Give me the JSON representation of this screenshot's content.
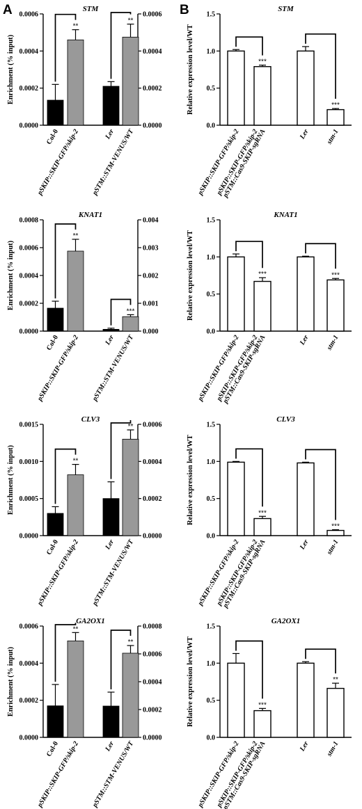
{
  "panels": {
    "left_letter": "A",
    "right_letter": "B"
  },
  "chart_data": [
    {
      "type": "bar",
      "panel": "A",
      "title": "STM",
      "ylabel": "Enrichment (% input)",
      "categories": [
        "Col-0",
        "pSKIP::SKIP-GFP/skip-2",
        "Ler",
        "pSTM::STM-VENUS/WT"
      ],
      "values": [
        0.000135,
        0.00046,
        0.00021,
        0.000475
      ],
      "errors": [
        8.5e-05,
        5.5e-05,
        2.5e-05,
        7e-05
      ],
      "significance": [
        "",
        "**",
        "",
        "**"
      ],
      "brackets": [
        [
          0,
          1
        ],
        [
          2,
          3
        ]
      ],
      "colors": [
        "#000000",
        "#999999",
        "#000000",
        "#999999"
      ],
      "ylim_left": [
        0,
        0.0006
      ],
      "yticks_left": [
        "0.0000",
        "0.0002",
        "0.0004",
        "0.0006"
      ],
      "ylim_right": [
        0,
        0.0006
      ],
      "yticks_right": [
        "0.0000",
        "0.0002",
        "0.0004",
        "0.0006"
      ]
    },
    {
      "type": "bar",
      "panel": "B",
      "title": "STM",
      "ylabel": "Relative expression level/WT",
      "categories": [
        "pSKIP::SKIP-GFP/skip-2",
        "pSKIP::SKIP-GFP/skip-2 pSTM::Cas9-SKIP-sgRNA",
        "Ler",
        "stm-1"
      ],
      "values": [
        1.0,
        0.79,
        1.0,
        0.21
      ],
      "errors": [
        0.02,
        0.02,
        0.06,
        0.015
      ],
      "significance": [
        "",
        "***",
        "",
        "***"
      ],
      "brackets": [
        [
          0,
          1
        ],
        [
          2,
          3
        ]
      ],
      "ylim": [
        0,
        1.5
      ],
      "yticks": [
        "0.0",
        "0.5",
        "1.0",
        "1.5"
      ]
    },
    {
      "type": "bar",
      "panel": "A",
      "title": "KNAT1",
      "ylabel": "Enrichment (% input)",
      "categories": [
        "Col-0",
        "pSKIP::SKIP-GFP/skip-2",
        "Ler",
        "pSTM::STM-VENUS/WT"
      ],
      "values": [
        0.000165,
        0.000575,
        6.5e-05,
        0.00052
      ],
      "errors": [
        5e-05,
        8.5e-05,
        4e-05,
        7e-05
      ],
      "significance": [
        "",
        "**",
        "",
        "***"
      ],
      "brackets": [
        [
          0,
          1
        ],
        [
          2,
          3
        ]
      ],
      "colors": [
        "#000000",
        "#999999",
        "#000000",
        "#999999"
      ],
      "ylim_left": [
        0,
        0.0008
      ],
      "yticks_left": [
        "0.0000",
        "0.0002",
        "0.0004",
        "0.0006",
        "0.0008"
      ],
      "ylim_right": [
        0,
        0.004
      ],
      "yticks_right": [
        "0.000",
        "0.001",
        "0.002",
        "0.003",
        "0.004"
      ]
    },
    {
      "type": "bar",
      "panel": "B",
      "title": "KNAT1",
      "ylabel": "Relative expression level/WT",
      "categories": [
        "pSKIP::SKIP-GFP/skip-2",
        "pSKIP::SKIP-GFP/skip-2 pSTM::Cas9-SKIP-sgRNA",
        "Ler",
        "stm-1"
      ],
      "values": [
        1.0,
        0.67,
        1.0,
        0.69
      ],
      "errors": [
        0.04,
        0.05,
        0.01,
        0.02
      ],
      "significance": [
        "",
        "***",
        "",
        "***"
      ],
      "brackets": [
        [
          0,
          1
        ],
        [
          2,
          3
        ]
      ],
      "ylim": [
        0,
        1.5
      ],
      "yticks": [
        "0.0",
        "0.5",
        "1.0",
        "1.5"
      ]
    },
    {
      "type": "bar",
      "panel": "A",
      "title": "CLV3",
      "ylabel": "Enrichment (% input)",
      "categories": [
        "Col-0",
        "pSKIP::SKIP-GFP/skip-2",
        "Ler",
        "pSTM::STM-VENUS/WT"
      ],
      "values": [
        0.0003,
        0.00082,
        0.0002,
        0.00052
      ],
      "errors": [
        9e-05,
        0.00014,
        9e-05,
        5e-05
      ],
      "significance": [
        "",
        "**",
        "",
        "**"
      ],
      "brackets": [
        [
          0,
          1
        ],
        [
          2,
          3
        ]
      ],
      "colors": [
        "#000000",
        "#999999",
        "#000000",
        "#999999"
      ],
      "ylim_left": [
        0,
        0.0015
      ],
      "yticks_left": [
        "0.0000",
        "0.0005",
        "0.0010",
        "0.0015"
      ],
      "ylim_right": [
        0,
        0.0006
      ],
      "yticks_right": [
        "0.0000",
        "0.0002",
        "0.0004",
        "0.0006"
      ]
    },
    {
      "type": "bar",
      "panel": "B",
      "title": "CLV3",
      "ylabel": "Relative expression level/WT",
      "categories": [
        "pSKIP::SKIP-GFP/skip-2",
        "pSKIP::SKIP-GFP/skip-2 pSTM::Cas9-SKIP-sgRNA",
        "Ler",
        "stm-1"
      ],
      "values": [
        0.99,
        0.23,
        0.98,
        0.07
      ],
      "errors": [
        0.01,
        0.03,
        0.01,
        0.01
      ],
      "significance": [
        "",
        "***",
        "",
        "***"
      ],
      "brackets": [
        [
          0,
          1
        ],
        [
          2,
          3
        ]
      ],
      "ylim": [
        0,
        1.5
      ],
      "yticks": [
        "0.0",
        "0.5",
        "1.0",
        "1.5"
      ]
    },
    {
      "type": "bar",
      "panel": "A",
      "title": "GA2OX1",
      "ylabel": "Enrichment (% input)",
      "categories": [
        "Col-0",
        "pSKIP::SKIP-GFP/skip-2",
        "Ler",
        "pSTM::STM-VENUS/WT"
      ],
      "values": [
        0.00017,
        0.00052,
        0.000225,
        0.000605
      ],
      "errors": [
        0.000115,
        4.5e-05,
        0.0001,
        5.5e-05
      ],
      "significance": [
        "",
        "**",
        "",
        "**"
      ],
      "brackets": [
        [
          0,
          1
        ],
        [
          2,
          3
        ]
      ],
      "colors": [
        "#000000",
        "#999999",
        "#000000",
        "#999999"
      ],
      "ylim_left": [
        0,
        0.0006
      ],
      "yticks_left": [
        "0.0000",
        "0.0002",
        "0.0004",
        "0.0006"
      ],
      "ylim_right": [
        0,
        0.0008
      ],
      "yticks_right": [
        "0.0000",
        "0.0002",
        "0.0004",
        "0.0006",
        "0.0008"
      ]
    },
    {
      "type": "bar",
      "panel": "B",
      "title": "GA2OX1",
      "ylabel": "Relative expression level/WT",
      "categories": [
        "pSKIP::SKIP-GFP/skip-2",
        "pSKIP::SKIP-GFP/skip-2 pSTM::Cas9-SKIP-sgRNA",
        "Ler",
        "stm-1"
      ],
      "values": [
        1.0,
        0.36,
        1.0,
        0.66
      ],
      "errors": [
        0.13,
        0.03,
        0.02,
        0.07
      ],
      "significance": [
        "",
        "***",
        "",
        "**"
      ],
      "brackets": [
        [
          0,
          1
        ],
        [
          2,
          3
        ]
      ],
      "ylim": [
        0,
        1.5
      ],
      "yticks": [
        "0.0",
        "0.5",
        "1.0",
        "1.5"
      ]
    }
  ]
}
